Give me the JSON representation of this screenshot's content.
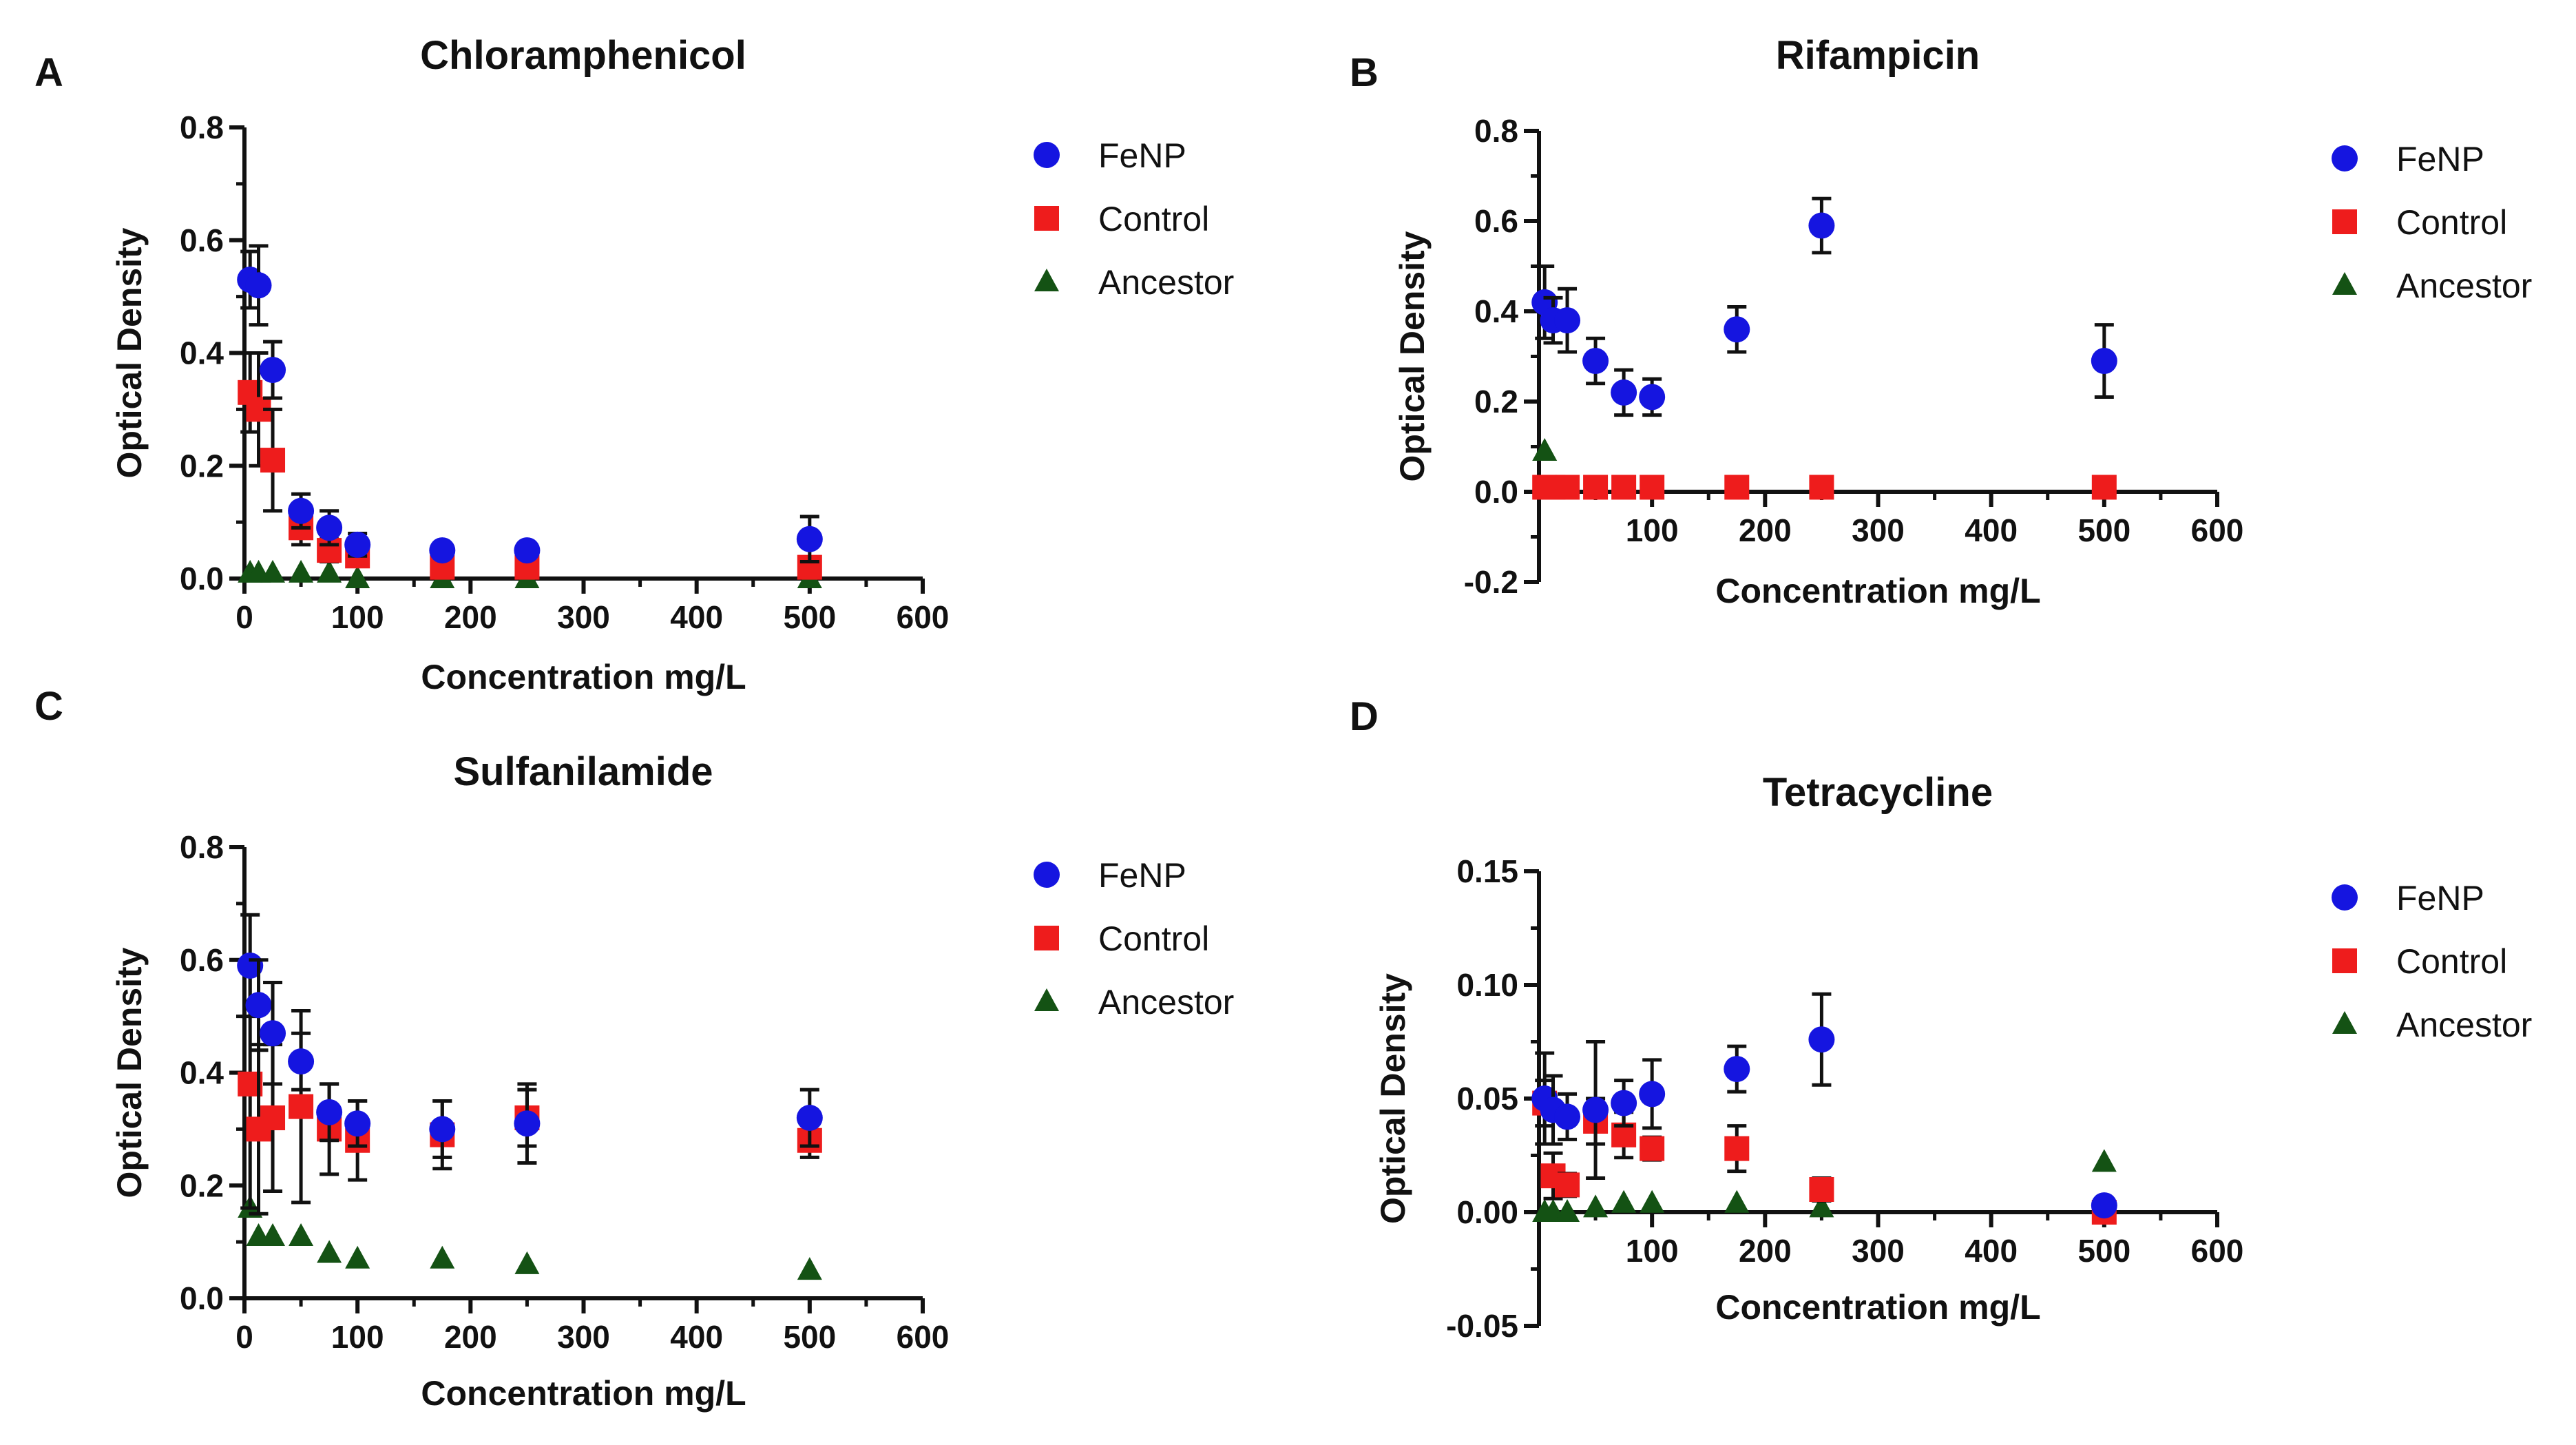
{
  "figure": {
    "panels": [
      {
        "letter": "A",
        "title": "Chloramphenicol",
        "xlabel": "Concentration mg/L",
        "ylabel": "Optical Density"
      },
      {
        "letter": "B",
        "title": "Rifampicin",
        "xlabel": "Concentration mg/L",
        "ylabel": "Optical Density"
      },
      {
        "letter": "C",
        "title": "Sulfanilamide",
        "xlabel": "Concentration mg/L",
        "ylabel": "Optical Density"
      },
      {
        "letter": "D",
        "title": "Tetracycline",
        "xlabel": "Concentration mg/L",
        "ylabel": "Optical Density"
      }
    ]
  },
  "chart_data": [
    {
      "type": "scatter",
      "title": "Chloramphenicol",
      "xlabel": "Concentration mg/L",
      "ylabel": "Optical Density",
      "xlim": [
        0,
        600
      ],
      "ylim": [
        0,
        0.8
      ],
      "xticks": [
        "0",
        "100",
        "200",
        "300",
        "400",
        "500",
        "600"
      ],
      "yticks": [
        "0.0",
        "0.2",
        "0.4",
        "0.6",
        "0.8"
      ],
      "legend_position": "right",
      "series": [
        {
          "name": "FeNP",
          "color": "#1515e0",
          "marker": "circle",
          "x": [
            5,
            12.5,
            25,
            50,
            75,
            100,
            175,
            250,
            500
          ],
          "y": [
            0.53,
            0.52,
            0.37,
            0.12,
            0.09,
            0.06,
            0.05,
            0.05,
            0.07
          ],
          "err": [
            0.05,
            0.07,
            0.05,
            0.03,
            0.03,
            0.02,
            0.01,
            0.01,
            0.04
          ]
        },
        {
          "name": "Control",
          "color": "#ee1c1c",
          "marker": "square",
          "x": [
            5,
            12.5,
            25,
            50,
            75,
            100,
            175,
            250,
            500
          ],
          "y": [
            0.33,
            0.3,
            0.21,
            0.09,
            0.05,
            0.04,
            0.02,
            0.02,
            0.02
          ],
          "err": [
            0.07,
            0.1,
            0.09,
            0.03,
            0.02,
            0.01,
            0.01,
            0.01,
            0.01
          ]
        },
        {
          "name": "Ancestor",
          "color": "#145214",
          "marker": "triangle",
          "x": [
            5,
            12.5,
            25,
            50,
            75,
            100,
            175,
            250,
            500
          ],
          "y": [
            0.01,
            0.01,
            0.01,
            0.01,
            0.01,
            0.0,
            0.0,
            0.0,
            0.0
          ],
          "err": [
            0,
            0,
            0,
            0,
            0,
            0,
            0,
            0,
            0
          ]
        }
      ]
    },
    {
      "type": "scatter",
      "title": "Rifampicin",
      "xlabel": "Concentration mg/L",
      "ylabel": "Optical Density",
      "xlim": [
        0,
        600
      ],
      "ylim": [
        -0.2,
        0.8
      ],
      "xticks": [
        "100",
        "200",
        "300",
        "400",
        "500",
        "600"
      ],
      "yticks": [
        "-0.2",
        "0.0",
        "0.2",
        "0.4",
        "0.6",
        "0.8"
      ],
      "legend_position": "right",
      "series": [
        {
          "name": "FeNP",
          "color": "#1515e0",
          "marker": "circle",
          "x": [
            5,
            12.5,
            25,
            50,
            75,
            100,
            175,
            250,
            500
          ],
          "y": [
            0.42,
            0.38,
            0.38,
            0.29,
            0.22,
            0.21,
            0.36,
            0.59,
            0.29
          ],
          "err": [
            0.08,
            0.05,
            0.07,
            0.05,
            0.05,
            0.04,
            0.05,
            0.06,
            0.08
          ]
        },
        {
          "name": "Control",
          "color": "#ee1c1c",
          "marker": "square",
          "x": [
            5,
            12.5,
            25,
            50,
            75,
            100,
            175,
            250,
            500
          ],
          "y": [
            0.01,
            0.01,
            0.01,
            0.01,
            0.01,
            0.01,
            0.01,
            0.01,
            0.01
          ],
          "err": [
            0,
            0,
            0,
            0,
            0,
            0,
            0,
            0,
            0
          ]
        },
        {
          "name": "Ancestor",
          "color": "#145214",
          "marker": "triangle",
          "x": [
            5
          ],
          "y": [
            0.09
          ],
          "err": [
            0
          ]
        }
      ]
    },
    {
      "type": "scatter",
      "title": "Sulfanilamide",
      "xlabel": "Concentration mg/L",
      "ylabel": "Optical Density",
      "xlim": [
        0,
        600
      ],
      "ylim": [
        0,
        0.8
      ],
      "xticks": [
        "0",
        "100",
        "200",
        "300",
        "400",
        "500",
        "600"
      ],
      "yticks": [
        "0.0",
        "0.2",
        "0.4",
        "0.6",
        "0.8"
      ],
      "legend_position": "right",
      "series": [
        {
          "name": "FeNP",
          "color": "#1515e0",
          "marker": "circle",
          "x": [
            5,
            12.5,
            25,
            50,
            75,
            100,
            175,
            250,
            500
          ],
          "y": [
            0.59,
            0.52,
            0.47,
            0.42,
            0.33,
            0.31,
            0.3,
            0.31,
            0.32
          ],
          "err": [
            0.09,
            0.08,
            0.09,
            0.05,
            0.05,
            0.04,
            0.05,
            0.07,
            0.05
          ]
        },
        {
          "name": "Control",
          "color": "#ee1c1c",
          "marker": "square",
          "x": [
            5,
            12.5,
            25,
            50,
            75,
            100,
            175,
            250,
            500
          ],
          "y": [
            0.38,
            0.3,
            0.32,
            0.34,
            0.3,
            0.28,
            0.29,
            0.32,
            0.28
          ],
          "err": [
            0.22,
            0.15,
            0.13,
            0.17,
            0.08,
            0.07,
            0.06,
            0.05,
            0.03
          ]
        },
        {
          "name": "Ancestor",
          "color": "#145214",
          "marker": "triangle",
          "x": [
            5,
            12.5,
            25,
            50,
            75,
            100,
            175,
            250,
            500
          ],
          "y": [
            0.16,
            0.11,
            0.11,
            0.11,
            0.08,
            0.07,
            0.07,
            0.06,
            0.05
          ],
          "err": [
            0,
            0,
            0,
            0,
            0,
            0,
            0,
            0,
            0
          ]
        }
      ]
    },
    {
      "type": "scatter",
      "title": "Tetracycline",
      "xlabel": "Concentration mg/L",
      "ylabel": "Optical Density",
      "xlim": [
        0,
        600
      ],
      "ylim": [
        -0.05,
        0.15
      ],
      "xticks": [
        "100",
        "200",
        "300",
        "400",
        "500",
        "600"
      ],
      "yticks": [
        "-0.05",
        "0.00",
        "0.05",
        "0.10",
        "0.15"
      ],
      "legend_position": "right",
      "series": [
        {
          "name": "FeNP",
          "color": "#1515e0",
          "marker": "circle",
          "x": [
            5,
            12.5,
            25,
            50,
            75,
            100,
            175,
            250,
            500
          ],
          "y": [
            0.05,
            0.045,
            0.042,
            0.045,
            0.048,
            0.052,
            0.063,
            0.076,
            0.003
          ],
          "err": [
            0.02,
            0.015,
            0.01,
            0.03,
            0.01,
            0.015,
            0.01,
            0.02,
            0.002
          ]
        },
        {
          "name": "Control",
          "color": "#ee1c1c",
          "marker": "square",
          "x": [
            5,
            12.5,
            25,
            50,
            75,
            100,
            175,
            250,
            500
          ],
          "y": [
            0.048,
            0.016,
            0.012,
            0.04,
            0.034,
            0.028,
            0.028,
            0.01,
            0.0
          ],
          "err": [
            0.01,
            0.01,
            0.005,
            0.01,
            0.01,
            0.005,
            0.01,
            0.005,
            0.0
          ]
        },
        {
          "name": "Ancestor",
          "color": "#145214",
          "marker": "triangle",
          "x": [
            5,
            12.5,
            25,
            50,
            75,
            100,
            175,
            250,
            500
          ],
          "y": [
            0.0,
            0.0,
            0.0,
            0.002,
            0.004,
            0.004,
            0.004,
            0.002,
            0.022
          ],
          "err": [
            0,
            0,
            0,
            0,
            0,
            0,
            0,
            0,
            0
          ]
        }
      ]
    }
  ]
}
